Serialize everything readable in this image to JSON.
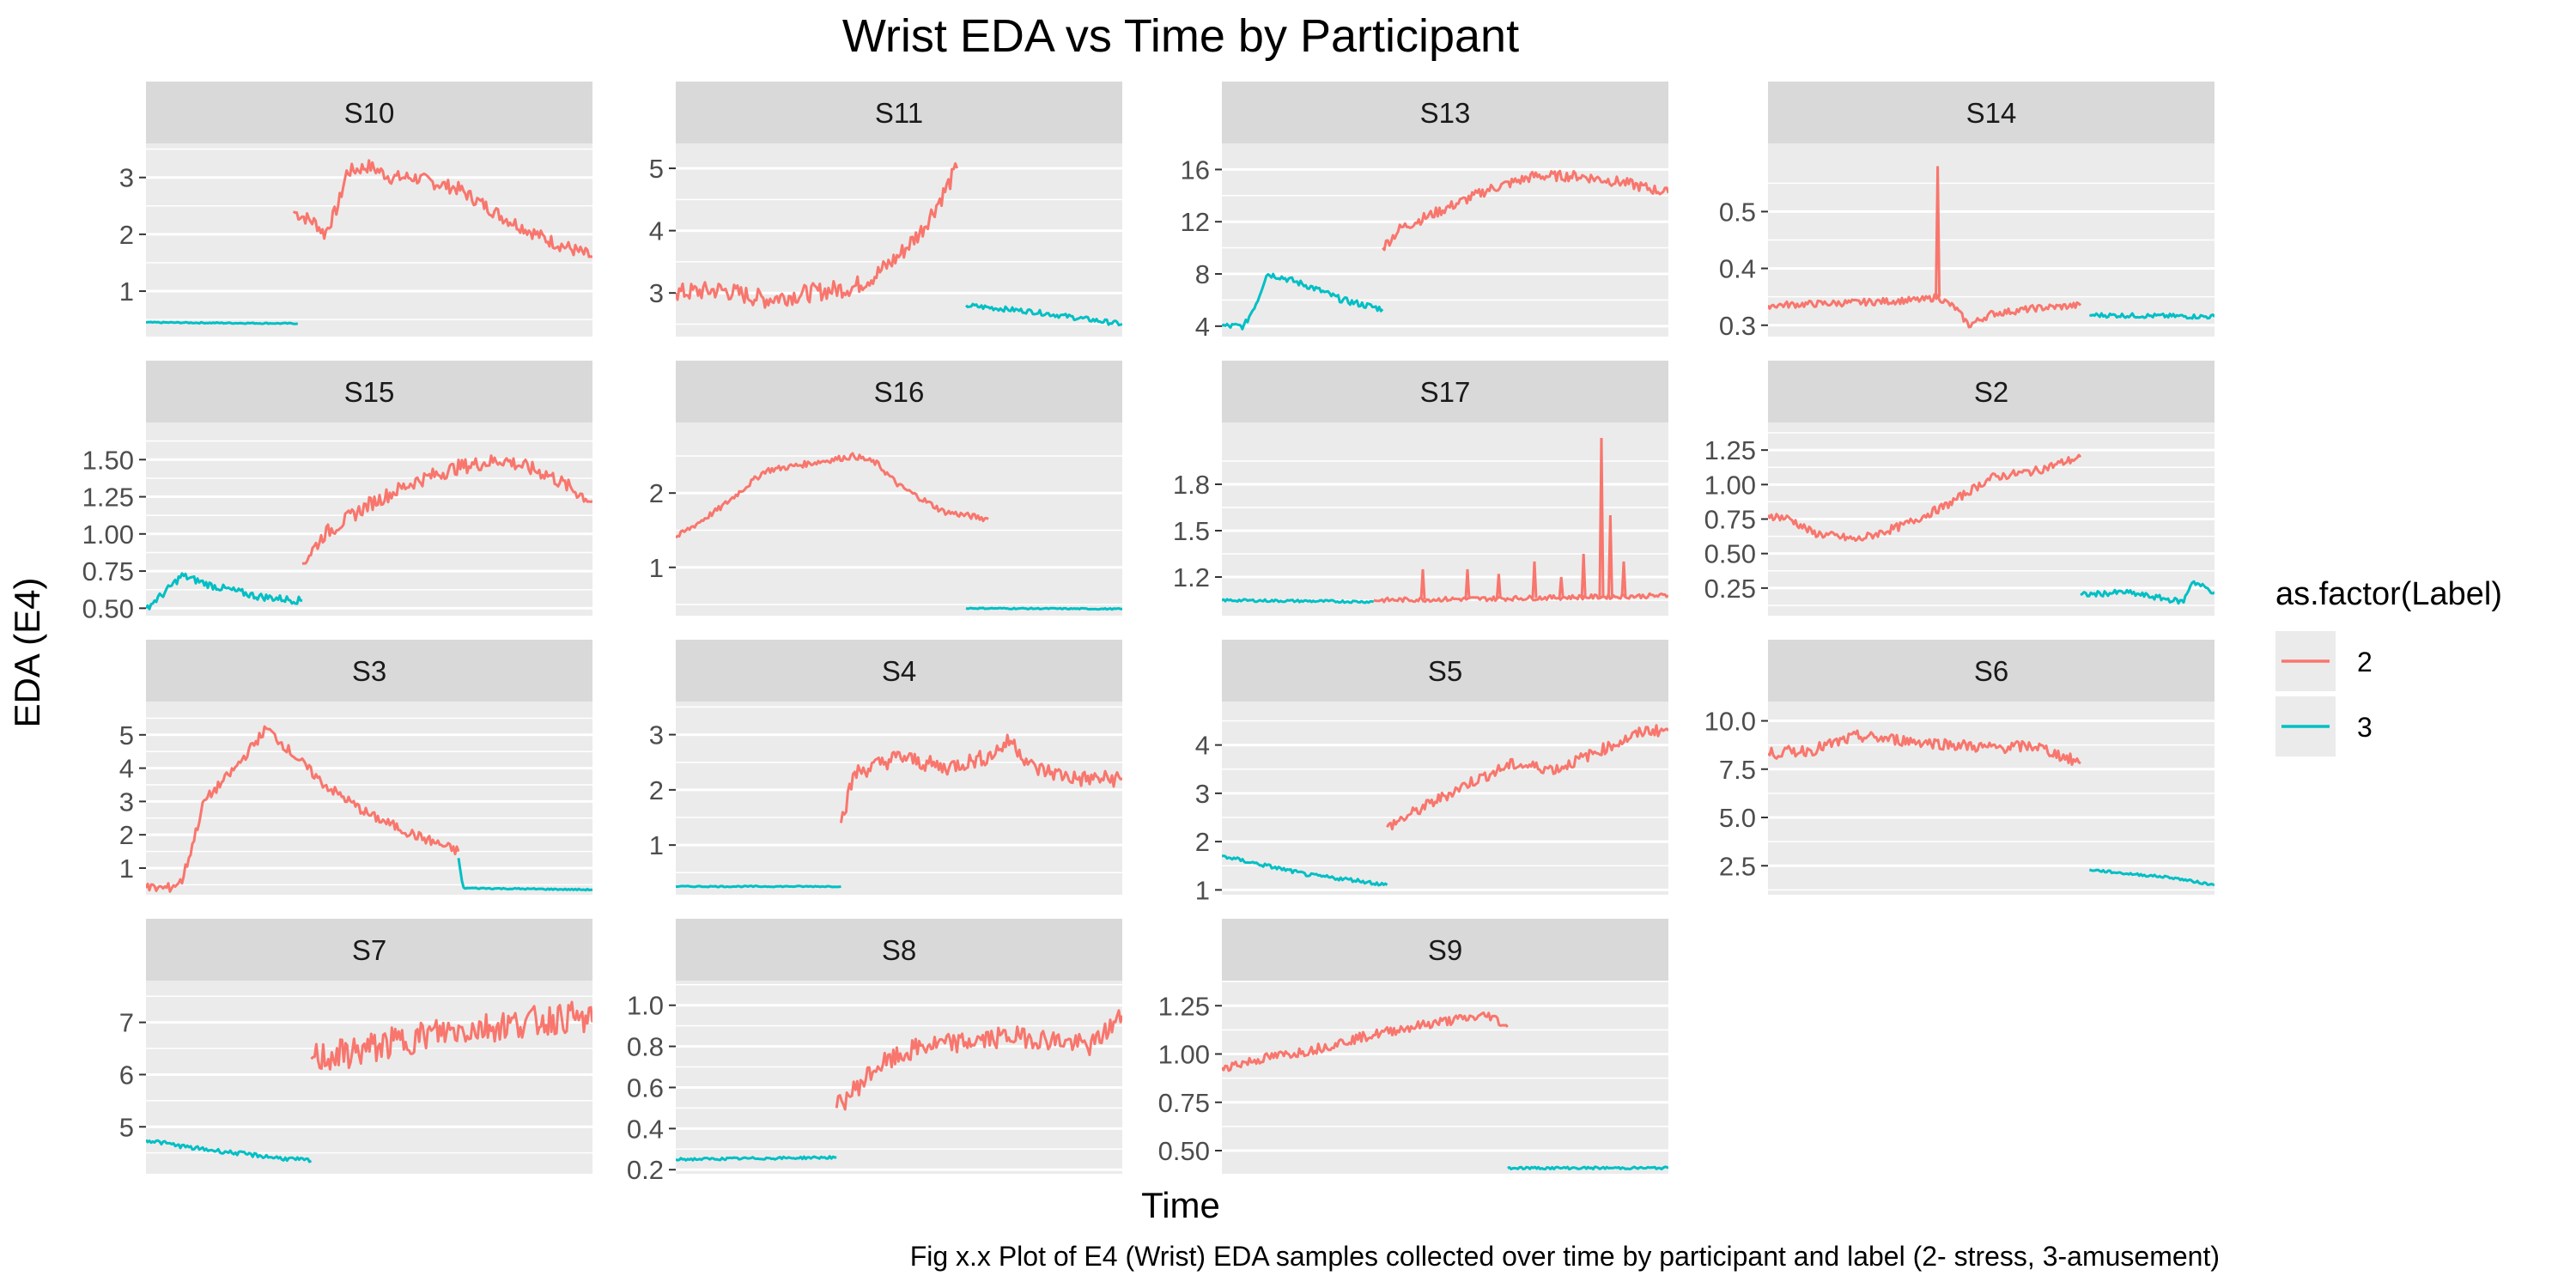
{
  "chart_data": {
    "type": "line",
    "title": "Wrist EDA vs Time by Participant",
    "xlabel": "Time",
    "ylabel": "EDA (E4)",
    "caption": "Fig x.x Plot of E4 (Wrist) EDA samples collected over time by participant and label (2- stress, 3-amusement)",
    "x_tick_labels_shown": false,
    "grid": true,
    "legend": {
      "title": "as.factor(Label)",
      "position": "right",
      "entries": [
        {
          "label": "2",
          "color": "#F8766D"
        },
        {
          "label": "3",
          "color": "#00BFC4"
        }
      ]
    },
    "facets": [
      {
        "name": "S10",
        "ylim": [
          0.2,
          3.6
        ],
        "yticks": [
          1,
          2,
          3
        ],
        "yticklabels": [
          "1",
          "2",
          "3"
        ],
        "series": [
          {
            "label": "2",
            "x": [
              0.33,
              0.38,
              0.4,
              0.43,
              0.45,
              0.5,
              0.55,
              0.6,
              0.7,
              0.8,
              0.9,
              1.0
            ],
            "y": [
              2.4,
              2.2,
              2.0,
              2.5,
              3.1,
              3.2,
              3.0,
              3.0,
              2.8,
              2.3,
              1.9,
              1.6
            ],
            "noise": 0.12
          },
          {
            "label": "3",
            "x": [
              0.0,
              0.34
            ],
            "y": [
              0.45,
              0.43
            ],
            "noise": 0.01
          }
        ]
      },
      {
        "name": "S11",
        "ylim": [
          2.3,
          5.4
        ],
        "yticks": [
          3,
          4,
          5
        ],
        "yticklabels": [
          "3",
          "4",
          "5"
        ],
        "series": [
          {
            "label": "2",
            "x": [
              0.0,
              0.1,
              0.2,
              0.3,
              0.4,
              0.45,
              0.5,
              0.55,
              0.6,
              0.63
            ],
            "y": [
              3.0,
              3.05,
              2.9,
              3.0,
              3.1,
              3.3,
              3.6,
              4.0,
              4.6,
              5.0
            ],
            "noise": 0.15
          },
          {
            "label": "3",
            "x": [
              0.65,
              0.8,
              0.9,
              1.0
            ],
            "y": [
              2.8,
              2.7,
              2.6,
              2.5
            ],
            "noise": 0.04
          }
        ]
      },
      {
        "name": "S13",
        "ylim": [
          3.2,
          18.0
        ],
        "yticks": [
          4,
          8,
          12,
          16
        ],
        "yticklabels": [
          "4",
          "8",
          "12",
          "16"
        ],
        "series": [
          {
            "label": "3",
            "x": [
              0.0,
              0.05,
              0.08,
              0.1,
              0.13,
              0.2,
              0.27,
              0.36
            ],
            "y": [
              4.0,
              4.0,
              6.0,
              8.0,
              7.8,
              7.0,
              6.0,
              5.3
            ],
            "noise": 0.25
          },
          {
            "label": "2",
            "x": [
              0.36,
              0.4,
              0.5,
              0.6,
              0.7,
              0.8,
              0.9,
              1.0
            ],
            "y": [
              10.0,
              11.5,
              13.0,
              14.5,
              15.5,
              15.5,
              15.0,
              14.2
            ],
            "noise": 0.4
          }
        ]
      },
      {
        "name": "S14",
        "ylim": [
          0.28,
          0.62
        ],
        "yticks": [
          0.3,
          0.4,
          0.5
        ],
        "yticklabels": [
          "0.3",
          "0.4",
          "0.5"
        ],
        "series": [
          {
            "label": "2",
            "x": [
              0.0,
              0.2,
              0.35,
              0.38,
              0.42,
              0.45,
              0.5,
              0.6,
              0.7
            ],
            "y": [
              0.335,
              0.34,
              0.345,
              0.35,
              0.33,
              0.3,
              0.32,
              0.33,
              0.335
            ],
            "noise": 0.006
          },
          {
            "label": "3",
            "x": [
              0.72,
              1.0
            ],
            "y": [
              0.318,
              0.315
            ],
            "noise": 0.004
          }
        ],
        "spike": {
          "label": "2",
          "x": 0.38,
          "y": 0.58
        }
      },
      {
        "name": "S15",
        "ylim": [
          0.45,
          1.75
        ],
        "yticks": [
          0.5,
          0.75,
          1.0,
          1.25,
          1.5
        ],
        "yticklabels": [
          "0.50",
          "0.75",
          "1.00",
          "1.25",
          "1.50"
        ],
        "series": [
          {
            "label": "3",
            "x": [
              0.0,
              0.04,
              0.08,
              0.15,
              0.25,
              0.35
            ],
            "y": [
              0.5,
              0.6,
              0.72,
              0.65,
              0.58,
              0.55
            ],
            "noise": 0.025
          },
          {
            "label": "2",
            "x": [
              0.35,
              0.4,
              0.5,
              0.6,
              0.7,
              0.8,
              0.9,
              1.0
            ],
            "y": [
              0.8,
              1.0,
              1.2,
              1.35,
              1.45,
              1.5,
              1.4,
              1.22
            ],
            "noise": 0.05
          }
        ]
      },
      {
        "name": "S16",
        "ylim": [
          0.35,
          2.95
        ],
        "yticks": [
          1,
          2
        ],
        "yticklabels": [
          "1",
          "2"
        ],
        "series": [
          {
            "label": "2",
            "x": [
              0.0,
              0.1,
              0.2,
              0.3,
              0.4,
              0.45,
              0.5,
              0.6,
              0.7
            ],
            "y": [
              1.4,
              1.8,
              2.3,
              2.4,
              2.5,
              2.4,
              2.1,
              1.75,
              1.65
            ],
            "noise": 0.04
          },
          {
            "label": "3",
            "x": [
              0.65,
              1.0
            ],
            "y": [
              0.45,
              0.44
            ],
            "noise": 0.008
          }
        ]
      },
      {
        "name": "S17",
        "ylim": [
          0.95,
          2.2
        ],
        "yticks": [
          1.2,
          1.5,
          1.8
        ],
        "yticklabels": [
          "1.2",
          "1.5",
          "1.8"
        ],
        "series": [
          {
            "label": "3",
            "x": [
              0.0,
              0.34
            ],
            "y": [
              1.05,
              1.04
            ],
            "noise": 0.008
          },
          {
            "label": "2",
            "x": [
              0.34,
              0.6,
              0.8,
              1.0
            ],
            "y": [
              1.05,
              1.06,
              1.07,
              1.08
            ],
            "noise": 0.015
          }
        ],
        "spikes": [
          {
            "x": 0.45,
            "y": 1.25
          },
          {
            "x": 0.55,
            "y": 1.25
          },
          {
            "x": 0.62,
            "y": 1.22
          },
          {
            "x": 0.7,
            "y": 1.3
          },
          {
            "x": 0.76,
            "y": 1.2
          },
          {
            "x": 0.81,
            "y": 1.35
          },
          {
            "x": 0.85,
            "y": 2.1
          },
          {
            "x": 0.87,
            "y": 1.6
          },
          {
            "x": 0.9,
            "y": 1.3
          }
        ]
      },
      {
        "name": "S2",
        "ylim": [
          0.05,
          1.45
        ],
        "yticks": [
          0.25,
          0.5,
          0.75,
          1.0,
          1.25
        ],
        "yticklabels": [
          "0.25",
          "0.50",
          "0.75",
          "1.00",
          "1.25"
        ],
        "series": [
          {
            "label": "2",
            "x": [
              0.0,
              0.05,
              0.1,
              0.2,
              0.3,
              0.4,
              0.45,
              0.5,
              0.6,
              0.7
            ],
            "y": [
              0.78,
              0.75,
              0.65,
              0.6,
              0.7,
              0.85,
              0.95,
              1.05,
              1.1,
              1.2
            ],
            "noise": 0.03
          },
          {
            "label": "3",
            "x": [
              0.7,
              0.8,
              0.93,
              0.95,
              1.0
            ],
            "y": [
              0.2,
              0.22,
              0.15,
              0.3,
              0.22
            ],
            "noise": 0.02
          }
        ]
      },
      {
        "name": "S3",
        "ylim": [
          0.2,
          6.0
        ],
        "yticks": [
          1,
          2,
          3,
          4,
          5
        ],
        "yticklabels": [
          "1",
          "2",
          "3",
          "4",
          "5"
        ],
        "series": [
          {
            "label": "2",
            "x": [
              0.0,
              0.05,
              0.08,
              0.1,
              0.13,
              0.2,
              0.27,
              0.3,
              0.4,
              0.5,
              0.6,
              0.7
            ],
            "y": [
              0.4,
              0.4,
              0.6,
              1.5,
              3.0,
              4.0,
              5.2,
              4.8,
              3.5,
              2.6,
              2.0,
              1.5
            ],
            "noise": 0.15
          },
          {
            "label": "3",
            "x": [
              0.7,
              0.71,
              1.0
            ],
            "y": [
              1.3,
              0.4,
              0.35
            ],
            "noise": 0.02
          }
        ]
      },
      {
        "name": "S4",
        "ylim": [
          0.1,
          3.6
        ],
        "yticks": [
          1,
          2,
          3
        ],
        "yticklabels": [
          "1",
          "2",
          "3"
        ],
        "series": [
          {
            "label": "3",
            "x": [
              0.0,
              0.37
            ],
            "y": [
              0.25,
              0.25
            ],
            "noise": 0.01
          },
          {
            "label": "2",
            "x": [
              0.37,
              0.4,
              0.5,
              0.6,
              0.7,
              0.75,
              0.8,
              0.9,
              1.0
            ],
            "y": [
              1.4,
              2.3,
              2.6,
              2.4,
              2.6,
              2.9,
              2.4,
              2.2,
              2.2
            ],
            "noise": 0.15
          }
        ]
      },
      {
        "name": "S5",
        "ylim": [
          0.9,
          4.9
        ],
        "yticks": [
          1,
          2,
          3,
          4
        ],
        "yticklabels": [
          "1",
          "2",
          "3",
          "4"
        ],
        "series": [
          {
            "label": "3",
            "x": [
              0.0,
              0.1,
              0.2,
              0.3,
              0.37
            ],
            "y": [
              1.7,
              1.5,
              1.3,
              1.2,
              1.1
            ],
            "noise": 0.04
          },
          {
            "label": "2",
            "x": [
              0.37,
              0.45,
              0.55,
              0.65,
              0.75,
              0.85,
              0.95,
              1.0
            ],
            "y": [
              2.3,
              2.7,
              3.2,
              3.6,
              3.5,
              3.9,
              4.3,
              4.3
            ],
            "noise": 0.12
          }
        ]
      },
      {
        "name": "S6",
        "ylim": [
          1.0,
          11.0
        ],
        "yticks": [
          2.5,
          5.0,
          7.5,
          10.0
        ],
        "yticklabels": [
          "2.5",
          "5.0",
          "7.5",
          "10.0"
        ],
        "series": [
          {
            "label": "2",
            "x": [
              0.0,
              0.1,
              0.2,
              0.3,
              0.4,
              0.5,
              0.6,
              0.7
            ],
            "y": [
              8.3,
              8.5,
              9.2,
              9.0,
              8.8,
              8.6,
              8.7,
              7.8
            ],
            "noise": 0.3
          },
          {
            "label": "3",
            "x": [
              0.72,
              0.8,
              0.9,
              1.0
            ],
            "y": [
              2.3,
              2.1,
              1.9,
              1.5
            ],
            "noise": 0.06
          }
        ]
      },
      {
        "name": "S7",
        "ylim": [
          4.1,
          7.8
        ],
        "yticks": [
          5,
          6,
          7
        ],
        "yticklabels": [
          "5",
          "6",
          "7"
        ],
        "series": [
          {
            "label": "3",
            "x": [
              0.0,
              0.1,
              0.2,
              0.3,
              0.37
            ],
            "y": [
              4.75,
              4.6,
              4.5,
              4.4,
              4.35
            ],
            "noise": 0.04
          },
          {
            "label": "2",
            "x": [
              0.37,
              0.45,
              0.55,
              0.65,
              0.75,
              0.85,
              0.95,
              1.0
            ],
            "y": [
              6.3,
              6.4,
              6.6,
              6.8,
              6.9,
              7.0,
              7.1,
              7.0
            ],
            "noise": 0.3
          }
        ]
      },
      {
        "name": "S8",
        "ylim": [
          0.18,
          1.12
        ],
        "yticks": [
          0.2,
          0.4,
          0.6,
          0.8,
          1.0
        ],
        "yticklabels": [
          "0.2",
          "0.4",
          "0.6",
          "0.8",
          "1.0"
        ],
        "series": [
          {
            "label": "3",
            "x": [
              0.0,
              0.36
            ],
            "y": [
              0.25,
              0.26
            ],
            "noise": 0.006
          },
          {
            "label": "2",
            "x": [
              0.36,
              0.45,
              0.55,
              0.65,
              0.75,
              0.85,
              0.93,
              1.0
            ],
            "y": [
              0.5,
              0.7,
              0.8,
              0.82,
              0.85,
              0.83,
              0.8,
              0.95
            ],
            "noise": 0.05
          }
        ]
      },
      {
        "name": "S9",
        "ylim": [
          0.38,
          1.38
        ],
        "yticks": [
          0.5,
          0.75,
          1.0,
          1.25
        ],
        "yticklabels": [
          "0.50",
          "0.75",
          "1.00",
          "1.25"
        ],
        "series": [
          {
            "label": "2",
            "x": [
              0.0,
              0.1,
              0.2,
              0.3,
              0.4,
              0.5,
              0.6,
              0.64
            ],
            "y": [
              0.93,
              0.98,
              1.02,
              1.08,
              1.13,
              1.17,
              1.2,
              1.14
            ],
            "noise": 0.025
          },
          {
            "label": "3",
            "x": [
              0.64,
              1.0
            ],
            "y": [
              0.41,
              0.41
            ],
            "noise": 0.006
          }
        ]
      }
    ]
  }
}
